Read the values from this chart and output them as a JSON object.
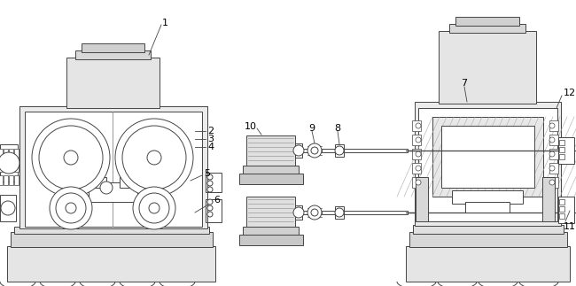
{
  "bg": "white",
  "lc": "#444444",
  "lc2": "#666666",
  "lw": 0.7,
  "fig_w": 6.5,
  "fig_h": 3.23,
  "dpi": 100
}
